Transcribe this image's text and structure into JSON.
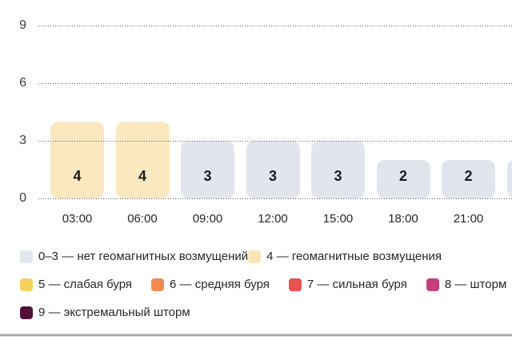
{
  "chart_data": {
    "type": "bar",
    "title": "",
    "xlabel": "",
    "ylabel": "",
    "categories": [
      "03:00",
      "06:00",
      "09:00",
      "12:00",
      "15:00",
      "18:00",
      "21:00",
      ""
    ],
    "values": [
      4,
      4,
      3,
      3,
      3,
      2,
      2,
      2
    ],
    "ylim": [
      0,
      9
    ],
    "yticks": [
      0,
      3,
      6,
      9
    ],
    "grid": "horizontal dotted",
    "legend_position": "bottom",
    "bars": [
      {
        "time": "03:00",
        "value": 4,
        "color": "#FBE8C0"
      },
      {
        "time": "06:00",
        "value": 4,
        "color": "#FBE8C0"
      },
      {
        "time": "09:00",
        "value": 3,
        "color": "#E2E4EE"
      },
      {
        "time": "12:00",
        "value": 3,
        "color": "#E2E4EE"
      },
      {
        "time": "15:00",
        "value": 3,
        "color": "#E2E4EE"
      },
      {
        "time": "18:00",
        "value": 2,
        "color": "#E2E4EE"
      },
      {
        "time": "21:00",
        "value": 2,
        "color": "#E2E4EE"
      },
      {
        "time": "",
        "value": 2,
        "color": "#E2E4EE"
      }
    ]
  },
  "legend": {
    "rows": [
      [
        {
          "label": "0–3 — нет геомагнитных возмущений",
          "color": "#E3E5EF"
        },
        {
          "label": "4 — геомагнитные возмущения",
          "color": "#FAE6B8"
        }
      ],
      [
        {
          "label": "5 — слабая буря",
          "color": "#F6D05F"
        },
        {
          "label": "6 — средняя буря",
          "color": "#F28B51"
        },
        {
          "label": "7 — сильная буря",
          "color": "#E9514F"
        },
        {
          "label": "8 — шторм",
          "color": "#C23F7B"
        }
      ],
      [
        {
          "label": "9 — экстремальный шторм",
          "color": "#551038"
        }
      ]
    ]
  },
  "colors": {
    "background": "#FFFFFF",
    "bar_quiet": "#E2E4EE",
    "bar_disturbance": "#FBE8C0",
    "grid_dot": "#5F6166",
    "axis_text": "#3A3A3C",
    "value_text": "#1C1C1E",
    "divider": "#A6A6A6"
  }
}
